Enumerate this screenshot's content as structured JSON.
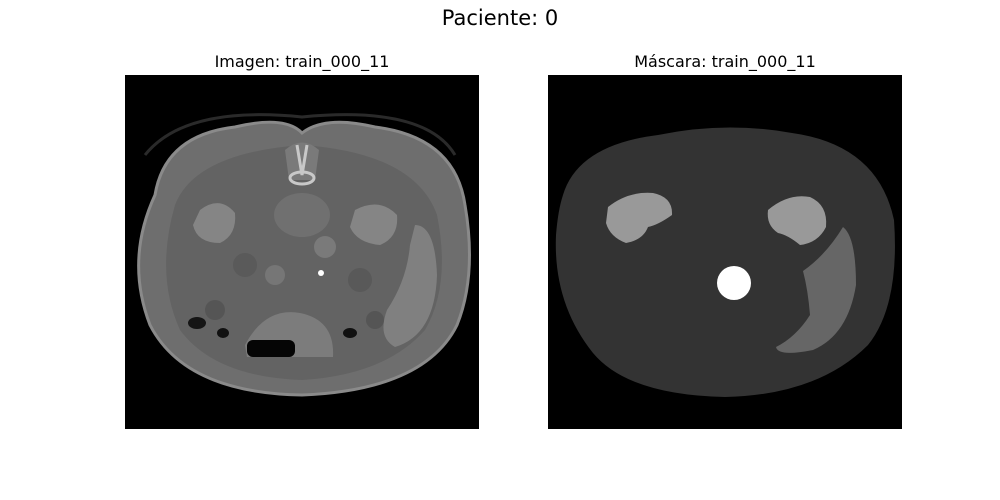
{
  "figure": {
    "suptitle": "Paciente: 0"
  },
  "panels": [
    {
      "title": "Imagen: train_000_11",
      "kind": "ct-slice"
    },
    {
      "title": "Máscara: train_000_11",
      "kind": "segmentation-mask"
    }
  ],
  "colors": {
    "background": "#000000",
    "body_ct": "#6e6e6e",
    "mask_body": "#333333",
    "mask_kidney": "#999999",
    "mask_liver": "#666666",
    "mask_aorta": "#ffffff"
  }
}
